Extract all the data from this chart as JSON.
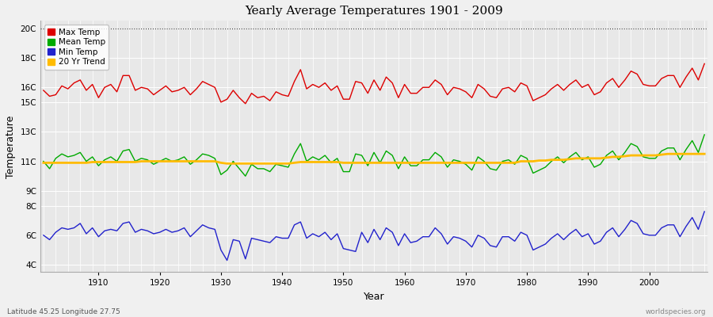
{
  "title": "Yearly Average Temperatures 1901 - 2009",
  "xlabel": "Year",
  "ylabel": "Temperature",
  "x_start": 1901,
  "x_end": 2009,
  "y_ticks": [
    "4C",
    "6C",
    "8C",
    "9C",
    "11C",
    "13C",
    "15C",
    "16C",
    "18C",
    "20C"
  ],
  "y_values": [
    4,
    6,
    8,
    9,
    11,
    13,
    15,
    16,
    18,
    20
  ],
  "ylim": [
    3.5,
    20.5
  ],
  "xlim": [
    1900.5,
    2009.5
  ],
  "bg_color": "#f0f0f0",
  "plot_bg_color": "#e8e8e8",
  "grid_color": "#ffffff",
  "max_temp_color": "#dd0000",
  "mean_temp_color": "#00aa00",
  "min_temp_color": "#2222cc",
  "trend_color": "#ffbb00",
  "trend_linewidth": 2.0,
  "data_linewidth": 1.0,
  "legend_labels": [
    "Max Temp",
    "Mean Temp",
    "Min Temp",
    "20 Yr Trend"
  ],
  "footer_left": "Latitude 45.25 Longitude 27.75",
  "footer_right": "worldspecies.org",
  "max_temp": [
    15.8,
    15.4,
    15.5,
    16.1,
    15.9,
    16.3,
    16.5,
    15.8,
    16.2,
    15.3,
    16.0,
    16.2,
    15.7,
    16.8,
    16.8,
    15.8,
    16.0,
    15.9,
    15.5,
    15.8,
    16.1,
    15.7,
    15.8,
    16.0,
    15.5,
    15.9,
    16.4,
    16.2,
    16.0,
    15.0,
    15.2,
    15.8,
    15.3,
    14.9,
    15.6,
    15.3,
    15.4,
    15.1,
    15.7,
    15.5,
    15.4,
    16.4,
    17.2,
    15.9,
    16.2,
    16.0,
    16.3,
    15.8,
    16.1,
    15.2,
    15.2,
    16.4,
    16.3,
    15.6,
    16.5,
    15.8,
    16.7,
    16.3,
    15.3,
    16.2,
    15.6,
    15.6,
    16.0,
    16.0,
    16.5,
    16.2,
    15.5,
    16.0,
    15.9,
    15.7,
    15.3,
    16.2,
    15.9,
    15.4,
    15.3,
    15.9,
    16.0,
    15.7,
    16.3,
    16.1,
    15.1,
    15.3,
    15.5,
    15.9,
    16.2,
    15.8,
    16.2,
    16.5,
    16.0,
    16.2,
    15.5,
    15.7,
    16.3,
    16.6,
    16.0,
    16.5,
    17.1,
    16.9,
    16.2,
    16.1,
    16.1,
    16.6,
    16.8,
    16.8,
    16.0,
    16.7,
    17.3,
    16.5,
    17.6
  ],
  "mean_temp": [
    11.0,
    10.5,
    11.2,
    11.5,
    11.3,
    11.4,
    11.6,
    11.0,
    11.3,
    10.7,
    11.1,
    11.3,
    11.0,
    11.7,
    11.8,
    11.0,
    11.2,
    11.1,
    10.8,
    11.0,
    11.2,
    11.0,
    11.1,
    11.3,
    10.8,
    11.1,
    11.5,
    11.4,
    11.2,
    10.1,
    10.4,
    11.0,
    10.5,
    10.0,
    10.8,
    10.5,
    10.5,
    10.3,
    10.8,
    10.7,
    10.6,
    11.5,
    12.2,
    11.0,
    11.3,
    11.1,
    11.4,
    10.9,
    11.2,
    10.3,
    10.3,
    11.5,
    11.4,
    10.7,
    11.6,
    10.9,
    11.7,
    11.4,
    10.5,
    11.3,
    10.7,
    10.7,
    11.1,
    11.1,
    11.6,
    11.3,
    10.6,
    11.1,
    11.0,
    10.8,
    10.4,
    11.3,
    11.0,
    10.5,
    10.4,
    11.0,
    11.1,
    10.8,
    11.4,
    11.2,
    10.2,
    10.4,
    10.6,
    11.0,
    11.3,
    10.9,
    11.3,
    11.6,
    11.1,
    11.3,
    10.6,
    10.8,
    11.4,
    11.7,
    11.1,
    11.6,
    12.2,
    12.0,
    11.3,
    11.2,
    11.2,
    11.7,
    11.9,
    11.9,
    11.1,
    11.8,
    12.4,
    11.6,
    12.8
  ],
  "min_temp": [
    6.0,
    5.7,
    6.2,
    6.5,
    6.4,
    6.5,
    6.8,
    6.1,
    6.5,
    5.9,
    6.3,
    6.4,
    6.3,
    6.8,
    6.9,
    6.2,
    6.4,
    6.3,
    6.1,
    6.2,
    6.4,
    6.2,
    6.3,
    6.5,
    5.9,
    6.3,
    6.7,
    6.5,
    6.4,
    5.0,
    4.3,
    5.7,
    5.6,
    4.4,
    5.8,
    5.7,
    5.6,
    5.5,
    5.9,
    5.8,
    5.8,
    6.7,
    6.9,
    5.8,
    6.1,
    5.9,
    6.2,
    5.7,
    6.1,
    5.1,
    5.0,
    4.9,
    6.2,
    5.5,
    6.4,
    5.7,
    6.5,
    6.2,
    5.3,
    6.1,
    5.5,
    5.6,
    5.9,
    5.9,
    6.5,
    6.1,
    5.4,
    5.9,
    5.8,
    5.6,
    5.2,
    6.0,
    5.8,
    5.3,
    5.2,
    5.9,
    5.9,
    5.6,
    6.2,
    6.0,
    5.0,
    5.2,
    5.4,
    5.8,
    6.1,
    5.7,
    6.1,
    6.4,
    5.9,
    6.1,
    5.4,
    5.6,
    6.2,
    6.5,
    5.9,
    6.4,
    7.0,
    6.8,
    6.1,
    6.0,
    6.0,
    6.5,
    6.7,
    6.7,
    5.9,
    6.6,
    7.2,
    6.4,
    7.6
  ],
  "trend": [
    10.9,
    10.9,
    10.9,
    10.9,
    10.9,
    10.9,
    10.9,
    10.9,
    10.95,
    10.95,
    10.95,
    10.95,
    10.95,
    10.95,
    10.95,
    10.95,
    11.0,
    11.0,
    11.0,
    11.0,
    11.0,
    11.0,
    11.0,
    11.0,
    11.0,
    11.0,
    11.0,
    11.0,
    11.0,
    10.9,
    10.85,
    10.85,
    10.85,
    10.85,
    10.85,
    10.85,
    10.85,
    10.85,
    10.85,
    10.85,
    10.85,
    10.9,
    10.95,
    10.95,
    10.95,
    10.95,
    10.95,
    10.95,
    10.95,
    10.9,
    10.9,
    10.9,
    10.9,
    10.9,
    10.9,
    10.9,
    10.9,
    10.9,
    10.9,
    10.9,
    10.9,
    10.9,
    10.9,
    10.9,
    10.9,
    10.9,
    10.9,
    10.9,
    10.9,
    10.9,
    10.9,
    10.9,
    10.9,
    10.9,
    10.9,
    10.9,
    10.9,
    10.9,
    11.0,
    11.0,
    11.0,
    11.05,
    11.05,
    11.1,
    11.1,
    11.1,
    11.15,
    11.2,
    11.2,
    11.2,
    11.2,
    11.2,
    11.25,
    11.3,
    11.3,
    11.35,
    11.4,
    11.4,
    11.4,
    11.4,
    11.4,
    11.45,
    11.5,
    11.5,
    11.5,
    11.5,
    11.5,
    11.5,
    11.5
  ]
}
